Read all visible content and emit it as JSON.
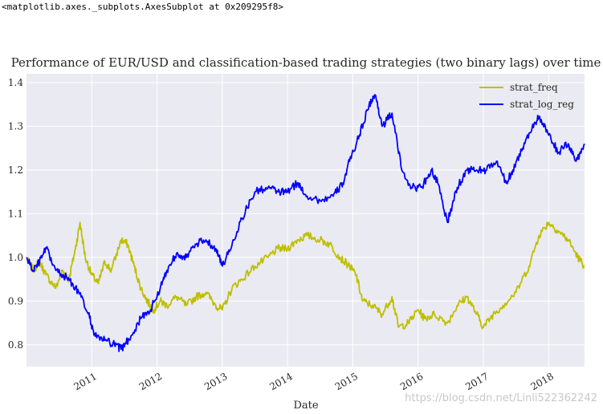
{
  "output_repr": "<matplotlib.axes._subplots.AxesSubplot at 0x209295f8>",
  "watermark": "https://blog.csdn.net/Linli522362242",
  "colors": {
    "strat_freq": "#bfbf00",
    "strat_log_reg": "#0000ff",
    "axes_bg": "#eaeaf2",
    "grid": "#ffffff"
  },
  "chart_data": {
    "type": "line",
    "title": "Performance of EUR/USD and classification-based trading strategies (two binary lags) over time",
    "xlabel": "Date",
    "ylabel": "",
    "xlim": [
      2010.0,
      2018.55
    ],
    "ylim": [
      0.75,
      1.42
    ],
    "yticks": [
      "0.8",
      "0.9",
      "1.0",
      "1.1",
      "1.2",
      "1.3",
      "1.4"
    ],
    "ytick_values": [
      0.8,
      0.9,
      1.0,
      1.1,
      1.2,
      1.3,
      1.4
    ],
    "xticks": [
      "2011",
      "2012",
      "2013",
      "2014",
      "2015",
      "2016",
      "2017",
      "2018"
    ],
    "xtick_values": [
      2011,
      2012,
      2013,
      2014,
      2015,
      2016,
      2017,
      2018
    ],
    "grid": true,
    "legend_position": "top-right",
    "series": [
      {
        "name": "strat_freq",
        "x": [
          2010.0,
          2010.1,
          2010.2,
          2010.3,
          2010.45,
          2010.55,
          2010.65,
          2010.75,
          2010.82,
          2010.9,
          2011.0,
          2011.1,
          2011.2,
          2011.3,
          2011.45,
          2011.55,
          2011.65,
          2011.75,
          2011.85,
          2011.95,
          2012.05,
          2012.15,
          2012.3,
          2012.45,
          2012.6,
          2012.75,
          2012.9,
          2013.0,
          2013.15,
          2013.3,
          2013.5,
          2013.7,
          2013.85,
          2014.0,
          2014.15,
          2014.3,
          2014.5,
          2014.65,
          2014.8,
          2014.95,
          2015.05,
          2015.15,
          2015.3,
          2015.45,
          2015.6,
          2015.7,
          2015.85,
          2016.0,
          2016.1,
          2016.25,
          2016.45,
          2016.6,
          2016.75,
          2016.9,
          2017.0,
          2017.15,
          2017.3,
          2017.5,
          2017.7,
          2017.85,
          2018.0,
          2018.15,
          2018.3,
          2018.45,
          2018.55
        ],
        "values": [
          1.0,
          0.97,
          0.99,
          0.96,
          0.93,
          0.97,
          0.95,
          1.02,
          1.08,
          1.0,
          0.96,
          0.94,
          0.99,
          0.97,
          1.04,
          1.03,
          0.98,
          0.93,
          0.9,
          0.88,
          0.9,
          0.89,
          0.91,
          0.89,
          0.91,
          0.92,
          0.89,
          0.88,
          0.93,
          0.95,
          0.98,
          1.0,
          1.02,
          1.02,
          1.04,
          1.05,
          1.04,
          1.03,
          1.0,
          0.98,
          0.96,
          0.9,
          0.89,
          0.87,
          0.91,
          0.84,
          0.85,
          0.88,
          0.86,
          0.87,
          0.85,
          0.89,
          0.91,
          0.87,
          0.84,
          0.87,
          0.89,
          0.92,
          0.98,
          1.05,
          1.08,
          1.06,
          1.04,
          1.0,
          0.98
        ]
      },
      {
        "name": "strat_log_reg",
        "x": [
          2010.0,
          2010.1,
          2010.2,
          2010.3,
          2010.45,
          2010.55,
          2010.65,
          2010.8,
          2010.95,
          2011.05,
          2011.2,
          2011.35,
          2011.45,
          2011.6,
          2011.75,
          2011.9,
          2012.05,
          2012.15,
          2012.3,
          2012.45,
          2012.6,
          2012.75,
          2012.9,
          2013.0,
          2013.15,
          2013.3,
          2013.5,
          2013.7,
          2013.85,
          2014.0,
          2014.15,
          2014.3,
          2014.5,
          2014.7,
          2014.85,
          2014.95,
          2015.1,
          2015.25,
          2015.35,
          2015.45,
          2015.6,
          2015.75,
          2015.9,
          2016.05,
          2016.2,
          2016.3,
          2016.45,
          2016.6,
          2016.75,
          2016.9,
          2017.05,
          2017.2,
          2017.35,
          2017.45,
          2017.6,
          2017.75,
          2017.85,
          2018.0,
          2018.15,
          2018.3,
          2018.42,
          2018.55
        ],
        "values": [
          1.0,
          0.97,
          0.99,
          1.02,
          0.97,
          0.96,
          0.95,
          0.92,
          0.87,
          0.82,
          0.81,
          0.8,
          0.79,
          0.82,
          0.86,
          0.88,
          0.93,
          0.97,
          1.01,
          1.0,
          1.03,
          1.04,
          1.02,
          0.98,
          1.03,
          1.09,
          1.15,
          1.16,
          1.15,
          1.15,
          1.17,
          1.14,
          1.13,
          1.14,
          1.17,
          1.22,
          1.28,
          1.35,
          1.37,
          1.3,
          1.33,
          1.2,
          1.16,
          1.16,
          1.2,
          1.17,
          1.08,
          1.16,
          1.2,
          1.2,
          1.2,
          1.22,
          1.17,
          1.2,
          1.25,
          1.3,
          1.32,
          1.28,
          1.24,
          1.26,
          1.22,
          1.26
        ]
      }
    ]
  }
}
